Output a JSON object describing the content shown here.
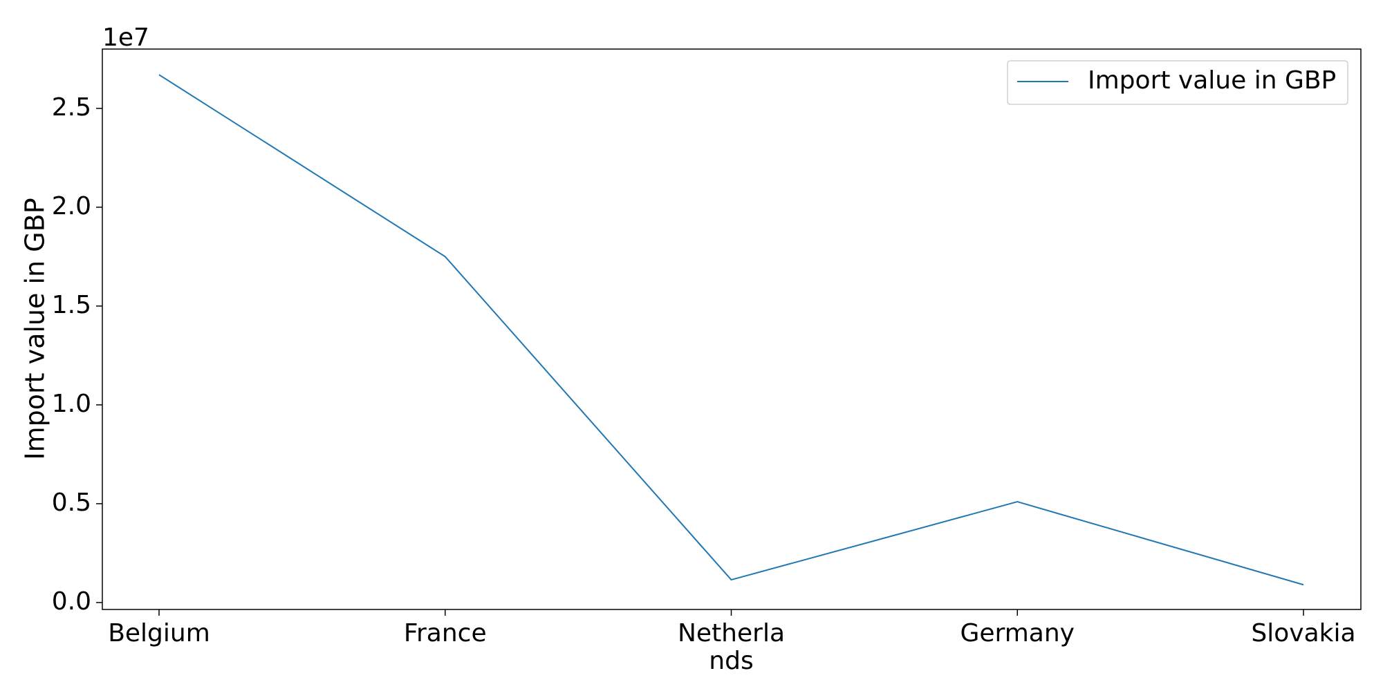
{
  "chart_data": {
    "type": "line",
    "categories": [
      "Belgium",
      "France",
      "Netherla\nnds",
      "Germany",
      "Slovakia"
    ],
    "series": [
      {
        "name": "Import value in GBP",
        "color": "#1f77b4",
        "values": [
          26700000,
          17500000,
          1150000,
          5100000,
          900000
        ]
      }
    ],
    "ylabel": "Import value in GBP",
    "y_offset_label": "1e7",
    "y_ticks": [
      0,
      5000000,
      10000000,
      15000000,
      20000000,
      25000000
    ],
    "y_tick_labels": [
      "0.0",
      "0.5",
      "1.0",
      "1.5",
      "2.0",
      "2.5"
    ],
    "ylim": [
      -350000,
      28000000
    ],
    "grid": false,
    "legend_position": "top-right"
  }
}
